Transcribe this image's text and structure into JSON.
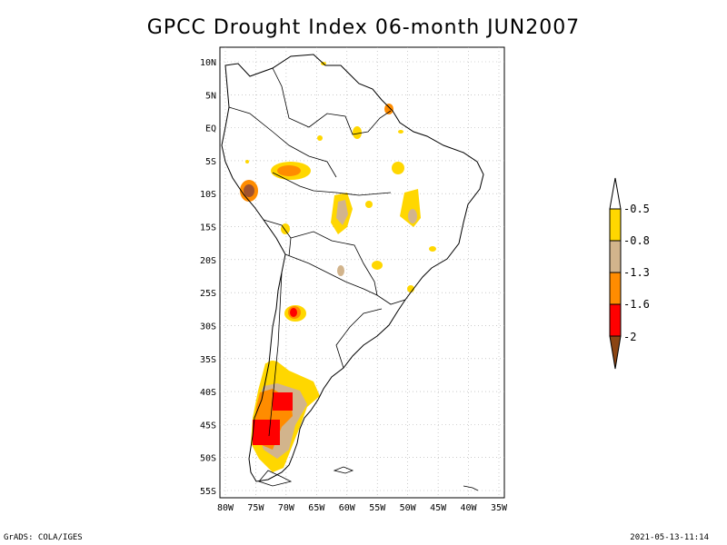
{
  "title": "GPCC Drought Index 06-month JUN2007",
  "footer_left": "GrADS: COLA/IGES",
  "footer_right": "2021-05-13-11:14",
  "map": {
    "region": "South America",
    "lon_range": [
      -80,
      -35
    ],
    "lat_range": [
      -55,
      10
    ],
    "lat_labels": [
      "10N",
      "5N",
      "EQ",
      "5S",
      "10S",
      "15S",
      "20S",
      "25S",
      "30S",
      "35S",
      "40S",
      "45S",
      "50S",
      "55S"
    ],
    "lon_labels": [
      "80W",
      "75W",
      "70W",
      "65W",
      "60W",
      "55W",
      "50W",
      "45W",
      "40W",
      "35W"
    ],
    "grid": true
  },
  "legend": {
    "items": [
      {
        "label": "-0.5",
        "color": "#ffd700"
      },
      {
        "label": "-0.8",
        "color": "#d2b48c"
      },
      {
        "label": "-1.3",
        "color": "#ff8c00"
      },
      {
        "label": "-1.6",
        "color": "#ff0000"
      },
      {
        "label": "-2",
        "color": "#8b4513"
      }
    ],
    "top_arrow_color": "#ffffff",
    "bottom_arrow_color": "#8b4513"
  }
}
